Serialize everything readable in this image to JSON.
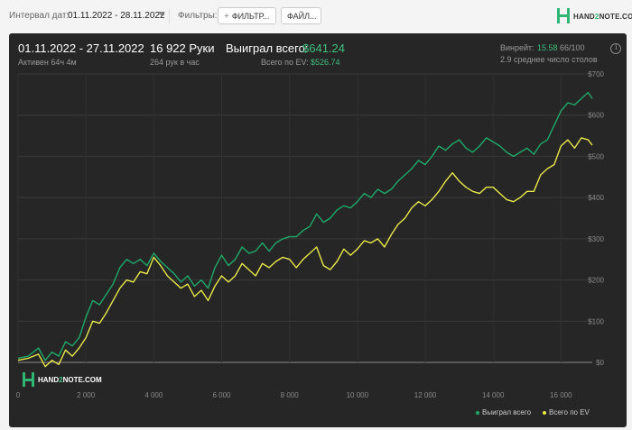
{
  "toolbar": {
    "date_label": "Интервал дат:",
    "date_value": "01.11.2022 - 28.11.2022",
    "filters_label": "Фильтры:",
    "filter_button": "ФИЛЬТР...",
    "file_button": "ФАЙЛ..."
  },
  "logo": {
    "part1": "HAND",
    "part2": "2",
    "part3": "NOTE.COM"
  },
  "summary": {
    "period": "01.11.2022 - 27.11.2022",
    "active": "Активен 64ч 4м",
    "hands": "16 922 Руки",
    "hands_rate": "264 рук в час",
    "won_label": "Выиграл всего:",
    "won_value": "$641.24",
    "ev_label": "Всего по EV:",
    "ev_value": "$526.74",
    "winrate_label": "Винрейт:",
    "winrate_value": "15.58",
    "winrate_extra": "66/100",
    "tables": "2.9 среднее число столов"
  },
  "watermark": {
    "part1": "HAND",
    "part2": "2",
    "part3": "NOTE.COM"
  },
  "colors": {
    "won": "#1fa86a",
    "ev": "#e8e84a",
    "accent": "#3fbf7f",
    "panel": "#262626"
  },
  "chart_data": {
    "type": "line",
    "x_ticks": [
      0,
      2000,
      4000,
      6000,
      8000,
      10000,
      12000,
      14000,
      16000
    ],
    "x_tick_labels": [
      "0",
      "2 000",
      "4 000",
      "6 000",
      "8 000",
      "10 000",
      "12 000",
      "14 000",
      "16 000"
    ],
    "y_ticks": [
      0,
      100,
      200,
      300,
      400,
      500,
      600,
      700
    ],
    "y_tick_labels": [
      "$0",
      "$100",
      "$200",
      "$300",
      "$400",
      "$500",
      "$600",
      "$700"
    ],
    "xlim": [
      0,
      16922
    ],
    "ylim": [
      0,
      700
    ],
    "grid": true,
    "legend": "bottom-right",
    "series": [
      {
        "name": "Выиграл всего",
        "color": "#1fa86a",
        "x": [
          0,
          300,
          600,
          800,
          1000,
          1200,
          1400,
          1600,
          1800,
          2000,
          2200,
          2400,
          2600,
          2800,
          3000,
          3200,
          3400,
          3600,
          3800,
          4000,
          4200,
          4400,
          4600,
          4800,
          5000,
          5200,
          5400,
          5600,
          5800,
          6000,
          6200,
          6400,
          6600,
          6800,
          7000,
          7200,
          7400,
          7600,
          7800,
          8000,
          8200,
          8400,
          8600,
          8800,
          9000,
          9200,
          9400,
          9600,
          9800,
          10000,
          10200,
          10400,
          10600,
          10800,
          11000,
          11200,
          11400,
          11600,
          11800,
          12000,
          12200,
          12400,
          12600,
          12800,
          13000,
          13200,
          13400,
          13600,
          13800,
          14000,
          14200,
          14400,
          14600,
          14800,
          15000,
          15200,
          15400,
          15600,
          15800,
          16000,
          16200,
          16400,
          16600,
          16800,
          16922
        ],
        "y": [
          10,
          15,
          35,
          5,
          25,
          15,
          50,
          40,
          60,
          110,
          150,
          140,
          165,
          190,
          230,
          250,
          240,
          250,
          235,
          265,
          245,
          230,
          215,
          195,
          210,
          185,
          200,
          180,
          230,
          260,
          235,
          250,
          280,
          265,
          270,
          290,
          270,
          290,
          300,
          305,
          305,
          320,
          330,
          360,
          340,
          350,
          370,
          380,
          375,
          390,
          410,
          400,
          420,
          410,
          420,
          440,
          455,
          470,
          490,
          480,
          500,
          525,
          515,
          530,
          540,
          520,
          510,
          525,
          545,
          535,
          525,
          510,
          500,
          510,
          520,
          505,
          530,
          540,
          575,
          610,
          630,
          625,
          640,
          655,
          640
        ]
      },
      {
        "name": "Всего по EV",
        "color": "#e8e84a",
        "x": [
          0,
          300,
          600,
          800,
          1000,
          1200,
          1400,
          1600,
          1800,
          2000,
          2200,
          2400,
          2600,
          2800,
          3000,
          3200,
          3400,
          3600,
          3800,
          4000,
          4200,
          4400,
          4600,
          4800,
          5000,
          5200,
          5400,
          5600,
          5800,
          6000,
          6200,
          6400,
          6600,
          6800,
          7000,
          7200,
          7400,
          7600,
          7800,
          8000,
          8200,
          8400,
          8600,
          8800,
          9000,
          9200,
          9400,
          9600,
          9800,
          10000,
          10200,
          10400,
          10600,
          10800,
          11000,
          11200,
          11400,
          11600,
          11800,
          12000,
          12200,
          12400,
          12600,
          12800,
          13000,
          13200,
          13400,
          13600,
          13800,
          14000,
          14200,
          14400,
          14600,
          14800,
          15000,
          15200,
          15400,
          15600,
          15800,
          16000,
          16200,
          16400,
          16600,
          16800,
          16922
        ],
        "y": [
          5,
          10,
          20,
          -10,
          5,
          -5,
          30,
          15,
          35,
          60,
          100,
          95,
          120,
          150,
          180,
          200,
          195,
          220,
          215,
          255,
          235,
          210,
          195,
          180,
          190,
          160,
          175,
          150,
          185,
          210,
          195,
          210,
          240,
          225,
          210,
          240,
          230,
          245,
          255,
          250,
          230,
          250,
          265,
          280,
          235,
          225,
          245,
          275,
          260,
          275,
          295,
          290,
          300,
          280,
          310,
          335,
          350,
          375,
          390,
          380,
          395,
          415,
          440,
          460,
          440,
          425,
          415,
          410,
          425,
          425,
          410,
          395,
          390,
          400,
          415,
          415,
          455,
          470,
          480,
          525,
          540,
          520,
          545,
          540,
          527
        ]
      }
    ]
  }
}
